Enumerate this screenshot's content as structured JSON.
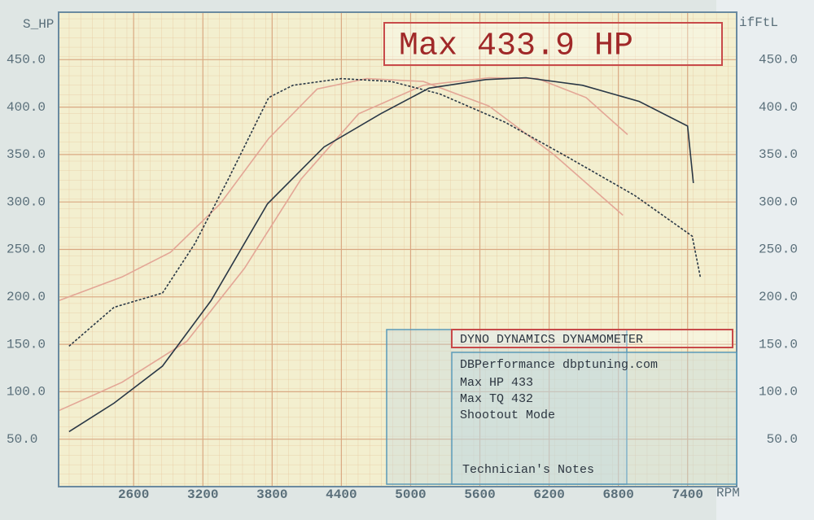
{
  "chart_data": {
    "type": "line",
    "y_label": "S_HP",
    "y2_label": "ifFtL",
    "x_label": "RPM",
    "annotation": "Max 433.9 HP",
    "info": {
      "title": "DYNO DYNAMICS DYNAMOMETER",
      "site": "DBPerformance dbptuning.com",
      "max_hp": "Max HP 433",
      "max_tq": "Max TQ 432",
      "mode": "Shootout Mode",
      "notes": "Technician's Notes"
    },
    "xlim": [
      1950,
      7825
    ],
    "ylim": [
      0,
      500
    ],
    "y2lim": [
      0,
      500
    ],
    "xticks": [
      2600,
      3200,
      3800,
      4400,
      5000,
      5600,
      6200,
      6800,
      7400
    ],
    "yticks": [
      {
        "value": 50,
        "label": "50.0"
      },
      {
        "value": 100,
        "label": "100.0"
      },
      {
        "value": 150,
        "label": "150.0"
      },
      {
        "value": 200,
        "label": "200.0"
      },
      {
        "value": 250,
        "label": "250.0"
      },
      {
        "value": 300,
        "label": "300.0"
      },
      {
        "value": 350,
        "label": "350.0"
      },
      {
        "value": 400,
        "label": "400.0"
      },
      {
        "value": 450,
        "label": "450.0"
      }
    ],
    "y2ticks": [
      {
        "value": 50,
        "label": "50.0"
      },
      {
        "value": 100,
        "label": "100.0"
      },
      {
        "value": 150,
        "label": "150.0"
      },
      {
        "value": 200,
        "label": "200.0"
      },
      {
        "value": 250,
        "label": "250.0"
      },
      {
        "value": 300,
        "label": "300.0"
      },
      {
        "value": 350,
        "label": "350.0"
      },
      {
        "value": 400,
        "label": "400.0"
      },
      {
        "value": 450,
        "label": "450.0"
      }
    ],
    "grid": true,
    "series": [
      {
        "color": "#e3a696",
        "dash": false,
        "x": [
          1950,
          2500,
          3060,
          3560,
          4050,
          4550,
          5110,
          5680,
          6100,
          6520,
          6880
        ],
        "values": [
          80,
          110,
          153,
          230,
          324,
          393,
          423,
          431,
          430,
          410,
          371
        ]
      },
      {
        "color": "#e3a696",
        "dash": false,
        "x": [
          1950,
          2500,
          2920,
          3350,
          3770,
          4190,
          4620,
          5110,
          5680,
          6240,
          6840
        ],
        "values": [
          196,
          221,
          247,
          298,
          367,
          419,
          430,
          427,
          401,
          350,
          286
        ]
      },
      {
        "color": "#2a3846",
        "dash": false,
        "x": [
          2040,
          2430,
          2850,
          3270,
          3760,
          4250,
          4740,
          5160,
          5650,
          6000,
          6490,
          6980,
          7400,
          7450
        ],
        "values": [
          58,
          88,
          127,
          196,
          298,
          358,
          393,
          420,
          429,
          431,
          423,
          406,
          380,
          320
        ]
      },
      {
        "color": "#2a3846",
        "dash": true,
        "x": [
          2040,
          2430,
          2850,
          3130,
          3420,
          3770,
          3980,
          4400,
          4830,
          5250,
          5820,
          6380,
          6940,
          7440,
          7510
        ],
        "values": [
          148,
          189,
          204,
          256,
          324,
          410,
          423,
          430,
          427,
          414,
          384,
          346,
          307,
          264,
          221
        ]
      }
    ]
  }
}
